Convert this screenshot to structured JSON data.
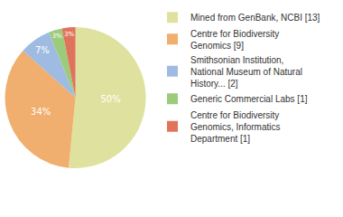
{
  "chart_data": {
    "type": "pie",
    "categories": [
      "Mined from GenBank, NCBI [13]",
      "Centre for Biodiversity Genomics [9]",
      "Smithsonian Institution, National Museum of Natural History... [2]",
      "Generic Commercial Labs [1]",
      "Centre for Biodiversity Genomics, Informatics Department [1]"
    ],
    "values": [
      50,
      34,
      7,
      3,
      3
    ],
    "value_labels": [
      "50%",
      "34%",
      "7%",
      "3%",
      "3%"
    ],
    "colors": [
      "#dfe29e",
      "#f0ae6f",
      "#9fbbe2",
      "#9ccb7c",
      "#e0745b"
    ],
    "data_labels": true,
    "legend": "upper right"
  }
}
